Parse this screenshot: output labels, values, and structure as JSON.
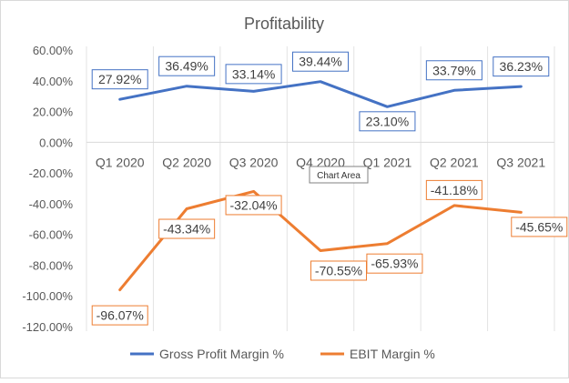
{
  "chart_data": {
    "type": "line",
    "title": "Profitability",
    "categories": [
      "Q1 2020",
      "Q2 2020",
      "Q3 2020",
      "Q4 2020",
      "Q1 2021",
      "Q2 2021",
      "Q3 2021"
    ],
    "ylim": [
      -120,
      60
    ],
    "yticks": [
      60,
      40,
      20,
      0,
      -20,
      -40,
      -60,
      -80,
      -100,
      -120
    ],
    "ytick_labels": [
      "60.00%",
      "40.00%",
      "20.00%",
      "0.00%",
      "-20.00%",
      "-40.00%",
      "-60.00%",
      "-80.00%",
      "-100.00%",
      "-120.00%"
    ],
    "grid": "vertical",
    "legend_position": "bottom",
    "series": [
      {
        "name": "Gross Profit Margin %",
        "color": "#4472C4",
        "values": [
          27.92,
          36.49,
          33.14,
          39.44,
          23.1,
          33.79,
          36.23
        ],
        "labels": [
          "27.92%",
          "36.49%",
          "33.14%",
          "39.44%",
          "23.10%",
          "33.79%",
          "36.23%"
        ]
      },
      {
        "name": "EBIT Margin %",
        "color": "#ED7D31",
        "values": [
          -96.07,
          -43.34,
          -32.04,
          -70.55,
          -65.93,
          -41.18,
          -45.65
        ],
        "labels": [
          "-96.07%",
          "-43.34%",
          "-32.04%",
          "-70.55%",
          "-65.93%",
          "-41.18%",
          "-45.65%"
        ]
      }
    ],
    "tooltip": "Chart Area"
  }
}
